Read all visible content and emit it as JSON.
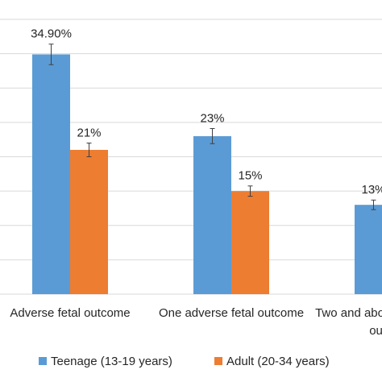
{
  "chart_data": {
    "type": "bar",
    "categories": [
      "Adverse fetal outcome",
      "One adverse fetal outcome",
      "Two  and above adverse fetal outcome"
    ],
    "series": [
      {
        "name": "Teenage (13-19 years)",
        "color": "#5b9bd5",
        "values": [
          34.9,
          23,
          13
        ],
        "value_labels": [
          "34.90%",
          "23%",
          "13%"
        ],
        "errors": [
          1.5,
          1.1,
          0.7
        ]
      },
      {
        "name": "Adult (20-34 years)",
        "color": "#ed7d31",
        "values": [
          21,
          15,
          null
        ],
        "value_labels": [
          "21%",
          "15%",
          null
        ],
        "errors": [
          1,
          0.75,
          null
        ]
      }
    ],
    "ylim": [
      0,
      40
    ],
    "yticks": [
      0,
      5,
      10,
      15,
      20,
      25,
      30,
      35,
      40
    ],
    "grid": true,
    "legend": "bottom"
  }
}
